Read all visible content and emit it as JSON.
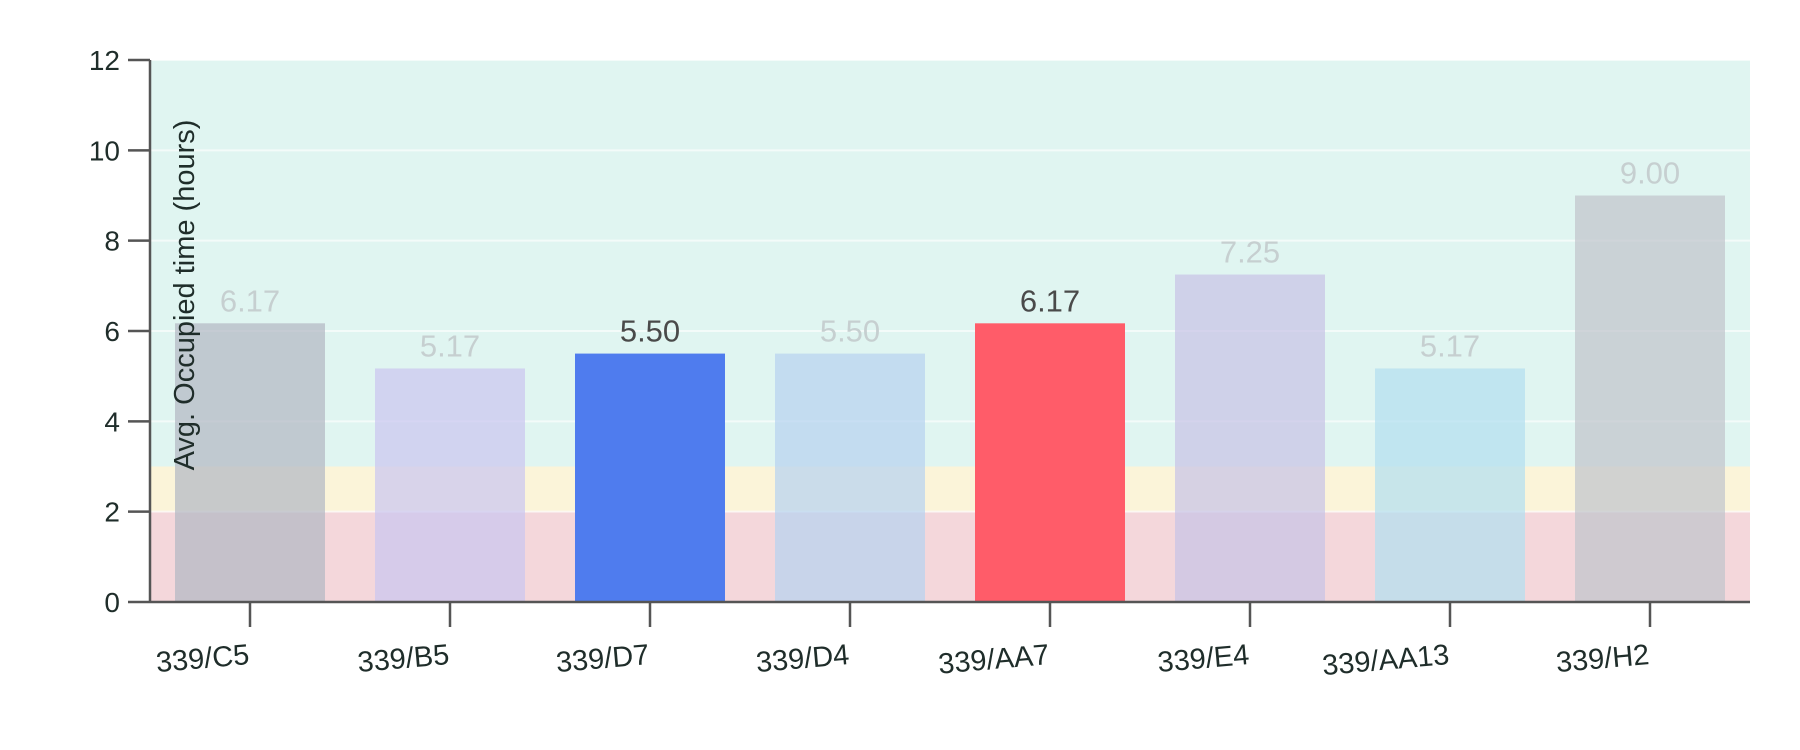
{
  "chart_data": {
    "type": "bar",
    "title": "",
    "xlabel": "",
    "ylabel": "Avg. Occupied time (hours)",
    "ylim": [
      0,
      12
    ],
    "yticks": [
      0,
      2,
      4,
      6,
      8,
      10,
      12
    ],
    "grid": true,
    "categories": [
      "339/C5",
      "339/B5",
      "339/D7",
      "339/D4",
      "339/AA7",
      "339/E4",
      "339/AA13",
      "339/H2"
    ],
    "values": [
      6.17,
      5.17,
      5.5,
      5.5,
      6.17,
      7.25,
      5.17,
      9.0
    ],
    "value_labels": [
      "6.17",
      "5.17",
      "5.50",
      "5.50",
      "6.17",
      "7.25",
      "5.17",
      "9.00"
    ],
    "highlighted": [
      false,
      false,
      true,
      false,
      true,
      false,
      false,
      false
    ],
    "bar_colors": [
      "#b3b9c4",
      "#cbc6f0",
      "#4f7cee",
      "#b7d2f0",
      "#ff5c69",
      "#c8c4e6",
      "#b3dff0",
      "#c0c5cc"
    ],
    "bands": [
      {
        "from": 0,
        "to": 2,
        "color": "#f4d7db"
      },
      {
        "from": 2,
        "to": 3,
        "color": "#fbf4d9"
      },
      {
        "from": 3,
        "to": 12,
        "color": "#e0f5f1"
      }
    ]
  }
}
